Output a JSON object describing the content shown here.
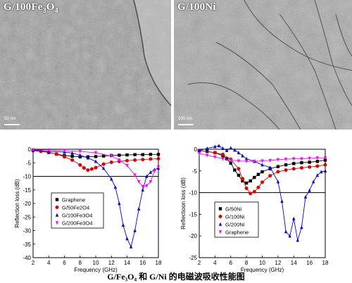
{
  "panels": [
    {
      "label_main": "G/100Fe",
      "label_sub": "3",
      "label_end": "O",
      "label_sub2": "4",
      "scale_text": "50 nm"
    },
    {
      "label_main": "G/100Ni",
      "label_sub": "",
      "label_end": "",
      "label_sub2": "",
      "scale_text": "100 nm"
    }
  ],
  "caption": "G/Fe₃O₄ 和 G/Ni 的电磁波吸收性能图",
  "chart_data": [
    {
      "type": "line",
      "xlabel": "Frequency (GHz)",
      "ylabel": "Reflection loss (dB)",
      "xlim": [
        2,
        18
      ],
      "ylim": [
        -40,
        0
      ],
      "xticks": [
        2,
        4,
        6,
        8,
        10,
        12,
        14,
        16,
        18
      ],
      "yticks": [
        0,
        -5,
        -10,
        -15,
        -20,
        -25,
        -30,
        -35,
        -40
      ],
      "reference_line_y": -10,
      "legend_position": "bottom-left",
      "series": [
        {
          "name": "Graphene",
          "color": "#000000",
          "marker": "square",
          "x": [
            2,
            3,
            4,
            5,
            6,
            7,
            8,
            9,
            10,
            11,
            12,
            13,
            14,
            15,
            16,
            17,
            18
          ],
          "y": [
            -0.3,
            -0.6,
            -1.2,
            -1.8,
            -2.3,
            -2.6,
            -2.8,
            -2.8,
            -2.7,
            -2.5,
            -2.3,
            -2.2,
            -2.1,
            -2.0,
            -2.0,
            -1.9,
            -1.9
          ]
        },
        {
          "name": "G/50Fe2O4",
          "color": "#e00000",
          "marker": "circle",
          "x": [
            2,
            3,
            4,
            5,
            6,
            7,
            8,
            8.5,
            9,
            9.5,
            10,
            11,
            12,
            13,
            14,
            15,
            16,
            17,
            18
          ],
          "y": [
            -0.5,
            -0.8,
            -1.2,
            -1.8,
            -2.8,
            -4.0,
            -5.8,
            -6.9,
            -7.7,
            -7.3,
            -6.8,
            -5.5,
            -4.8,
            -4.5,
            -4.2,
            -4.0,
            -3.8,
            -3.6,
            -3.5
          ]
        },
        {
          "name": "G/100Fe3O4",
          "color": "#0000e0",
          "marker": "triangle",
          "x": [
            2,
            4,
            6,
            7,
            8,
            9,
            10,
            11,
            12,
            12.5,
            13,
            13.5,
            14,
            14.5,
            15,
            15.5,
            16,
            16.5,
            17,
            17.5,
            18
          ],
          "y": [
            -0.5,
            -0.8,
            -1.0,
            -1.4,
            -2.2,
            -3.2,
            -4.5,
            -7,
            -11,
            -14,
            -20,
            -28,
            -33,
            -36,
            -30,
            -22,
            -15,
            -10,
            -8.5,
            -7.5,
            -7
          ]
        },
        {
          "name": "G/200Fe3O4",
          "color": "#ff00ff",
          "marker": "triangle-down",
          "x": [
            2,
            4,
            6,
            8,
            10,
            12,
            13,
            14,
            15,
            15.5,
            16,
            16.5,
            17,
            17.5,
            18
          ],
          "y": [
            -0.2,
            -0.3,
            -0.5,
            -0.8,
            -1.3,
            -2.5,
            -4,
            -6,
            -9.5,
            -12,
            -13.8,
            -13.5,
            -12,
            -8,
            -6.5
          ]
        }
      ]
    },
    {
      "type": "line",
      "xlabel": "Frequency (GHz)",
      "ylabel": "Reflectioon loss (dB)",
      "xlim": [
        2,
        18
      ],
      "ylim": [
        -25,
        0
      ],
      "xticks": [
        2,
        4,
        6,
        8,
        10,
        12,
        14,
        16,
        18
      ],
      "yticks": [
        0,
        -5,
        -10,
        -15,
        -20,
        -25
      ],
      "reference_line_y": -10,
      "legend_position": "bottom-left",
      "series": [
        {
          "name": "G/50Ni",
          "color": "#000000",
          "marker": "square",
          "x": [
            2,
            3,
            4,
            5,
            5.5,
            6,
            6.5,
            7,
            7.5,
            8,
            8.5,
            9,
            9.5,
            10,
            11,
            12,
            13,
            14,
            15,
            16,
            17,
            18
          ],
          "y": [
            -0.3,
            -0.5,
            -0.8,
            -1.5,
            -2.2,
            -3.2,
            -4.8,
            -6.0,
            -7.3,
            -7.8,
            -7.3,
            -6.5,
            -5.8,
            -5.2,
            -4.5,
            -4.0,
            -3.6,
            -3.3,
            -3.1,
            -3.0,
            -2.8,
            -2.5
          ]
        },
        {
          "name": "G/100Ni",
          "color": "#e00000",
          "marker": "circle",
          "x": [
            2,
            4,
            5,
            6,
            7,
            7.5,
            8,
            8.5,
            9,
            9.5,
            10,
            11,
            12,
            13,
            14,
            15,
            16,
            17,
            18
          ],
          "y": [
            -0.3,
            -0.8,
            -1.2,
            -2.3,
            -4.5,
            -6.8,
            -9.0,
            -10.2,
            -9.8,
            -8.8,
            -7.6,
            -6.1,
            -5.2,
            -4.8,
            -4.5,
            -4.3,
            -4.1,
            -3.9,
            -3.6
          ]
        },
        {
          "name": "G/200Ni",
          "color": "#0000e0",
          "marker": "triangle",
          "x": [
            2,
            3,
            4,
            4.5,
            5,
            5.5,
            6,
            6.5,
            7,
            7.5,
            8,
            9,
            10,
            11,
            12,
            12.5,
            13,
            13.5,
            14,
            14.5,
            15,
            15.5,
            16,
            16.5,
            17,
            17.5,
            18
          ],
          "y": [
            -0.3,
            0.2,
            0.6,
            0.8,
            0.2,
            -0.3,
            0.3,
            -0.2,
            -0.8,
            -1.5,
            -2.2,
            -2.8,
            -3.6,
            -4.2,
            -7.5,
            -12,
            -19,
            -20,
            -16,
            -21,
            -18,
            -11,
            -9.5,
            -7.5,
            -6.0,
            -5.2,
            -5.0
          ]
        },
        {
          "name": "Graphene",
          "color": "#ff00ff",
          "marker": "triangle-down",
          "x": [
            2,
            3,
            4,
            5,
            6,
            7,
            8,
            9,
            10,
            11,
            12,
            13,
            14,
            15,
            16,
            17,
            18
          ],
          "y": [
            -1.0,
            -1.4,
            -1.8,
            -2.2,
            -2.5,
            -2.7,
            -2.8,
            -2.8,
            -2.7,
            -2.6,
            -2.4,
            -2.3,
            -2.2,
            -2.2,
            -2.1,
            -2.0,
            -2.0
          ]
        }
      ]
    }
  ]
}
